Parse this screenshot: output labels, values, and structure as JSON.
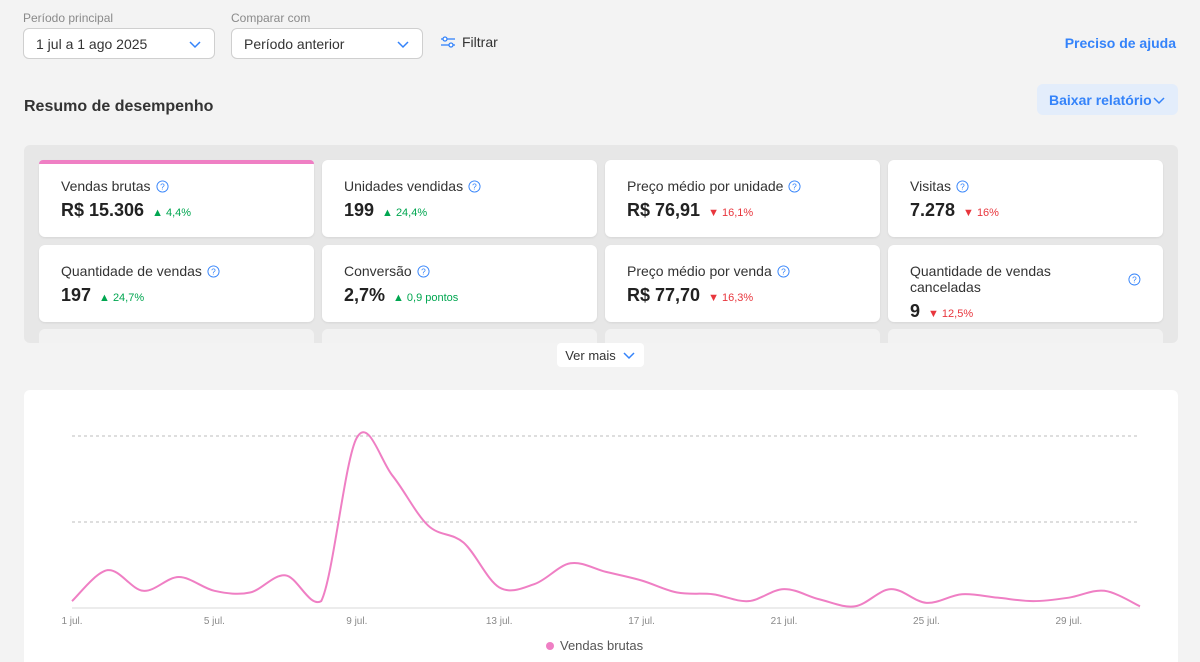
{
  "filters": {
    "main_period_label": "Período principal",
    "main_period_value": "1 jul a 1 ago 2025",
    "compare_label": "Comparar com",
    "compare_value": "Período anterior",
    "filter_label": "Filtrar",
    "help_link": "Preciso de ajuda"
  },
  "summary": {
    "title": "Resumo de desempenho",
    "download_label": "Baixar relatório",
    "more_label": "Ver mais",
    "cards": [
      {
        "title": "Vendas brutas",
        "value": "R$ 15.306",
        "delta": "4,4%",
        "trend": "up"
      },
      {
        "title": "Unidades vendidas",
        "value": "199",
        "delta": "24,4%",
        "trend": "up"
      },
      {
        "title": "Preço médio por unidade",
        "value": "R$ 76,91",
        "delta": "16,1%",
        "trend": "down"
      },
      {
        "title": "Visitas",
        "value": "7.278",
        "delta": "16%",
        "trend": "down"
      },
      {
        "title": "Quantidade de vendas",
        "value": "197",
        "delta": "24,7%",
        "trend": "up"
      },
      {
        "title": "Conversão",
        "value": "2,7%",
        "delta": "0,9 pontos",
        "trend": "up"
      },
      {
        "title": "Preço médio por venda",
        "value": "R$ 77,70",
        "delta": "16,3%",
        "trend": "down"
      },
      {
        "title": "Quantidade de vendas canceladas",
        "value": "9",
        "delta": "12,5%",
        "trend": "down"
      }
    ]
  },
  "colors": {
    "accent": "#3483fa",
    "series": "#ef7fc4",
    "up": "#00a650",
    "down": "#e8363d"
  },
  "chart_data": {
    "type": "line",
    "x_ticks": [
      "1 jul.",
      "5 jul.",
      "9 jul.",
      "13 jul.",
      "17 jul.",
      "21 jul.",
      "25 jul.",
      "29 jul."
    ],
    "x": [
      "1 jul.",
      "2 jul.",
      "3 jul.",
      "4 jul.",
      "5 jul.",
      "6 jul.",
      "7 jul.",
      "8 jul.",
      "9 jul.",
      "10 jul.",
      "11 jul.",
      "12 jul.",
      "13 jul.",
      "14 jul.",
      "15 jul.",
      "16 jul.",
      "17 jul.",
      "18 jul.",
      "19 jul.",
      "20 jul.",
      "21 jul.",
      "22 jul.",
      "23 jul.",
      "24 jul.",
      "25 jul.",
      "26 jul.",
      "27 jul.",
      "28 jul.",
      "29 jul.",
      "30 jul.",
      "31 jul."
    ],
    "series": [
      {
        "name": "Vendas brutas",
        "values": [
          0.04,
          0.22,
          0.1,
          0.18,
          0.1,
          0.09,
          0.19,
          0.04,
          0.99,
          0.77,
          0.48,
          0.38,
          0.12,
          0.14,
          0.26,
          0.21,
          0.16,
          0.09,
          0.08,
          0.04,
          0.11,
          0.05,
          0.01,
          0.11,
          0.03,
          0.08,
          0.06,
          0.04,
          0.06,
          0.1,
          0.01
        ]
      }
    ],
    "grid": true,
    "gridlines_y": [
      0.5,
      1.0
    ],
    "legend_position": "bottom-center"
  }
}
